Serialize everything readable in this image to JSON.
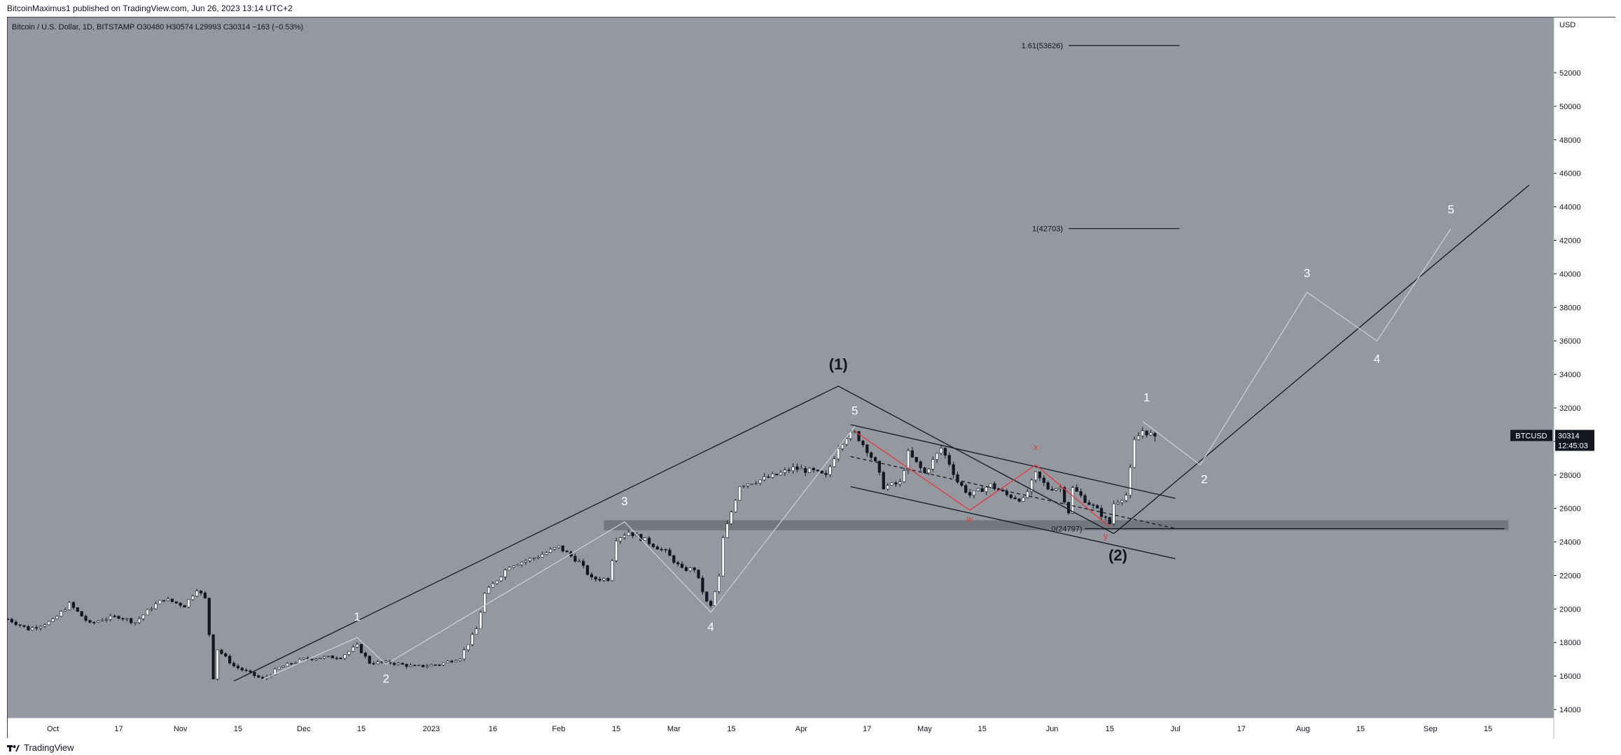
{
  "header": {
    "publisher": "BitcoinMaximus1 published on TradingView.com, Jun 26, 2023 13:14 UTC+2"
  },
  "footer": {
    "brand": "TradingView"
  },
  "legend": {
    "symbol_desc": "Bitcoin / U.S. Dollar, 1D, BITSTAMP",
    "o_label": "O",
    "o_value": "30480",
    "h_label": "H",
    "h_value": "30574",
    "l_label": "L",
    "l_value": "29993",
    "c_label": "C",
    "c_value": "30314",
    "change": "−163 (−0.53%)"
  },
  "price_tag": {
    "symbol": "BTCUSD",
    "price": "30314",
    "countdown": "12:45:03"
  },
  "colors": {
    "background": "#9598a1",
    "up_candle": "#ffffff",
    "down_candle": "#131722",
    "channel": "#131722",
    "projection": "#cfd1d6",
    "support_zone": "#6f7178",
    "wave_label": "#ffffff",
    "red_label": "#e53935"
  },
  "chart_data": {
    "type": "candlestick",
    "symbol": "BTCUSD",
    "exchange": "BITSTAMP",
    "timeframe": "1D",
    "y_unit": "USD",
    "ylim": [
      13500,
      55300
    ],
    "y_ticks": [
      14000,
      16000,
      18000,
      20000,
      22000,
      24000,
      26000,
      28000,
      30000,
      32000,
      34000,
      36000,
      38000,
      40000,
      42000,
      44000,
      46000,
      48000,
      50000,
      52000
    ],
    "x_range": [
      "2022-09-20",
      "2023-10-01"
    ],
    "x_ticks": [
      {
        "label": "Oct",
        "date": "2022-10-01"
      },
      {
        "label": "17",
        "date": "2022-10-17"
      },
      {
        "label": "Nov",
        "date": "2022-11-01"
      },
      {
        "label": "15",
        "date": "2022-11-15"
      },
      {
        "label": "Dec",
        "date": "2022-12-01"
      },
      {
        "label": "15",
        "date": "2022-12-15"
      },
      {
        "label": "2023",
        "date": "2023-01-01"
      },
      {
        "label": "16",
        "date": "2023-01-16"
      },
      {
        "label": "Feb",
        "date": "2023-02-01"
      },
      {
        "label": "15",
        "date": "2023-02-15"
      },
      {
        "label": "Mar",
        "date": "2023-03-01"
      },
      {
        "label": "15",
        "date": "2023-03-15"
      },
      {
        "label": "Apr",
        "date": "2023-04-01"
      },
      {
        "label": "17",
        "date": "2023-04-17"
      },
      {
        "label": "May",
        "date": "2023-05-01"
      },
      {
        "label": "15",
        "date": "2023-05-15"
      },
      {
        "label": "Jun",
        "date": "2023-06-01"
      },
      {
        "label": "15",
        "date": "2023-06-15"
      },
      {
        "label": "Jul",
        "date": "2023-07-01"
      },
      {
        "label": "17",
        "date": "2023-07-17"
      },
      {
        "label": "Aug",
        "date": "2023-08-01"
      },
      {
        "label": "15",
        "date": "2023-08-15"
      },
      {
        "label": "Sep",
        "date": "2023-09-01"
      },
      {
        "label": "15",
        "date": "2023-09-15"
      }
    ],
    "close_anchors": [
      [
        "2022-09-20",
        19400
      ],
      [
        "2022-09-25",
        18800
      ],
      [
        "2022-10-01",
        19300
      ],
      [
        "2022-10-05",
        20300
      ],
      [
        "2022-10-10",
        19100
      ],
      [
        "2022-10-13",
        19400
      ],
      [
        "2022-10-17",
        19550
      ],
      [
        "2022-10-21",
        19200
      ],
      [
        "2022-10-25",
        20100
      ],
      [
        "2022-10-28",
        20600
      ],
      [
        "2022-11-02",
        20200
      ],
      [
        "2022-11-05",
        21200
      ],
      [
        "2022-11-07",
        20600
      ],
      [
        "2022-11-08",
        18500
      ],
      [
        "2022-11-09",
        15900
      ],
      [
        "2022-11-10",
        17600
      ],
      [
        "2022-11-14",
        16600
      ],
      [
        "2022-11-21",
        15800
      ],
      [
        "2022-11-25",
        16500
      ],
      [
        "2022-12-01",
        17000
      ],
      [
        "2022-12-05",
        17100
      ],
      [
        "2022-12-10",
        17150
      ],
      [
        "2022-12-14",
        17800
      ],
      [
        "2022-12-17",
        16800
      ],
      [
        "2022-12-22",
        16800
      ],
      [
        "2022-12-28",
        16550
      ],
      [
        "2023-01-03",
        16700
      ],
      [
        "2023-01-08",
        17100
      ],
      [
        "2023-01-12",
        18800
      ],
      [
        "2023-01-14",
        20900
      ],
      [
        "2023-01-20",
        22600
      ],
      [
        "2023-01-26",
        23050
      ],
      [
        "2023-02-01",
        23700
      ],
      [
        "2023-02-06",
        22800
      ],
      [
        "2023-02-09",
        21800
      ],
      [
        "2023-02-13",
        21800
      ],
      [
        "2023-02-15",
        24200
      ],
      [
        "2023-02-18",
        24600
      ],
      [
        "2023-02-22",
        24100
      ],
      [
        "2023-02-27",
        23400
      ],
      [
        "2023-03-03",
        22350
      ],
      [
        "2023-03-06",
        22400
      ],
      [
        "2023-03-09",
        20400
      ],
      [
        "2023-03-10",
        20150
      ],
      [
        "2023-03-12",
        21900
      ],
      [
        "2023-03-13",
        24200
      ],
      [
        "2023-03-17",
        27400
      ],
      [
        "2023-03-22",
        27700
      ],
      [
        "2023-03-26",
        28000
      ],
      [
        "2023-03-30",
        28400
      ],
      [
        "2023-04-04",
        28200
      ],
      [
        "2023-04-07",
        27900
      ],
      [
        "2023-04-10",
        29700
      ],
      [
        "2023-04-12",
        30300
      ],
      [
        "2023-04-14",
        30500
      ],
      [
        "2023-04-17",
        29500
      ],
      [
        "2023-04-19",
        28700
      ],
      [
        "2023-04-21",
        27300
      ],
      [
        "2023-04-25",
        27500
      ],
      [
        "2023-04-27",
        29300
      ],
      [
        "2023-05-01",
        28100
      ],
      [
        "2023-05-05",
        29600
      ],
      [
        "2023-05-07",
        28700
      ],
      [
        "2023-05-09",
        27600
      ],
      [
        "2023-05-12",
        26800
      ],
      [
        "2023-05-17",
        27400
      ],
      [
        "2023-05-21",
        26800
      ],
      [
        "2023-05-25",
        26500
      ],
      [
        "2023-05-28",
        28050
      ],
      [
        "2023-05-31",
        27200
      ],
      [
        "2023-06-03",
        27250
      ],
      [
        "2023-06-05",
        25800
      ],
      [
        "2023-06-06",
        27200
      ],
      [
        "2023-06-09",
        26500
      ],
      [
        "2023-06-12",
        25900
      ],
      [
        "2023-06-15",
        25100
      ],
      [
        "2023-06-16",
        26300
      ],
      [
        "2023-06-19",
        26800
      ],
      [
        "2023-06-20",
        28300
      ],
      [
        "2023-06-21",
        30000
      ],
      [
        "2023-06-23",
        30650
      ],
      [
        "2023-06-26",
        30314
      ]
    ],
    "last_candle": {
      "date": "2023-06-26",
      "open": 30480,
      "high": 30574,
      "low": 29993,
      "close": 30314
    },
    "current_price": 30314,
    "fib_levels": [
      {
        "ratio": "1.61",
        "price": 53626,
        "label": "1.61(53626)"
      },
      {
        "ratio": "1",
        "price": 42703,
        "label": "1(42703)"
      },
      {
        "ratio": "0",
        "price": 24797,
        "label": "0(24797)"
      }
    ],
    "support_zone": {
      "low": 24700,
      "high": 25300,
      "from": "2023-02-12",
      "to": "2023-09-20"
    },
    "lines": [
      {
        "name": "wave-1-upper-trendline",
        "color": "#131722",
        "points": [
          [
            "2022-11-14",
            15700
          ],
          [
            "2023-04-10",
            33300
          ],
          [
            "2023-06-16",
            24500
          ]
        ]
      },
      {
        "name": "long-term-support",
        "color": "#131722",
        "points": [
          [
            "2023-06-16",
            24500
          ],
          [
            "2023-09-25",
            45300
          ]
        ]
      },
      {
        "name": "channel-upper",
        "color": "#131722",
        "points": [
          [
            "2023-04-13",
            31000
          ],
          [
            "2023-07-01",
            26600
          ]
        ]
      },
      {
        "name": "channel-lower",
        "color": "#131722",
        "points": [
          [
            "2023-04-13",
            27300
          ],
          [
            "2023-07-01",
            23000
          ]
        ]
      },
      {
        "name": "channel-mid-dashed",
        "color": "#131722",
        "dashed": true,
        "points": [
          [
            "2023-04-13",
            29100
          ],
          [
            "2023-07-01",
            24800
          ]
        ]
      },
      {
        "name": "wave-count-past",
        "color": "#cfd1d6",
        "points": [
          [
            "2022-11-21",
            15800
          ],
          [
            "2022-12-14",
            18300
          ],
          [
            "2022-12-21",
            16700
          ],
          [
            "2023-02-17",
            25200
          ],
          [
            "2023-03-10",
            19800
          ],
          [
            "2023-04-14",
            30900
          ]
        ]
      },
      {
        "name": "wave-count-projection",
        "color": "#cfd1d6",
        "points": [
          [
            "2023-06-23",
            31200
          ],
          [
            "2023-07-07",
            28600
          ],
          [
            "2023-08-02",
            38900
          ],
          [
            "2023-08-19",
            36000
          ],
          [
            "2023-09-06",
            42700
          ]
        ]
      },
      {
        "name": "wxy-red",
        "color": "#e53935",
        "points": [
          [
            "2023-04-14",
            30600
          ],
          [
            "2023-05-12",
            25900
          ],
          [
            "2023-05-28",
            28600
          ],
          [
            "2023-06-15",
            24900
          ]
        ]
      }
    ],
    "annotations": [
      {
        "text": "(1)",
        "date": "2023-04-10",
        "price": 34300,
        "style": "big"
      },
      {
        "text": "(2)",
        "date": "2023-06-17",
        "price": 22900,
        "style": "big"
      },
      {
        "text": "1",
        "date": "2022-12-14",
        "price": 19300,
        "style": "white"
      },
      {
        "text": "2",
        "date": "2022-12-21",
        "price": 15600,
        "style": "white"
      },
      {
        "text": "3",
        "date": "2023-02-17",
        "price": 26200,
        "style": "white"
      },
      {
        "text": "4",
        "date": "2023-03-10",
        "price": 18700,
        "style": "white"
      },
      {
        "text": "5",
        "date": "2023-04-14",
        "price": 31600,
        "style": "white"
      },
      {
        "text": "1",
        "date": "2023-06-24",
        "price": 32400,
        "style": "white"
      },
      {
        "text": "2",
        "date": "2023-07-08",
        "price": 27500,
        "style": "white"
      },
      {
        "text": "3",
        "date": "2023-08-02",
        "price": 39800,
        "style": "white"
      },
      {
        "text": "4",
        "date": "2023-08-19",
        "price": 34700,
        "style": "white"
      },
      {
        "text": "5",
        "date": "2023-09-06",
        "price": 43600,
        "style": "white"
      },
      {
        "text": "w",
        "date": "2023-05-12",
        "price": 25200,
        "style": "red"
      },
      {
        "text": "x",
        "date": "2023-05-28",
        "price": 29500,
        "style": "red"
      },
      {
        "text": "y",
        "date": "2023-06-14",
        "price": 24200,
        "style": "red"
      }
    ]
  }
}
